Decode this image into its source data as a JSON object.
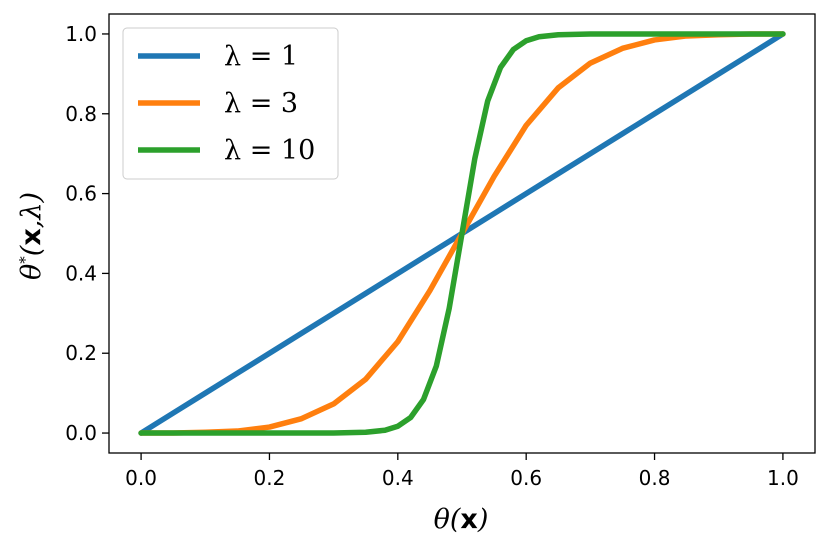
{
  "chart_data": {
    "type": "line",
    "title": "",
    "xlabel": "θ(x)",
    "ylabel": "θ*(x,λ)",
    "xlim": [
      -0.05,
      1.05
    ],
    "ylim": [
      -0.05,
      1.05
    ],
    "xticks": [
      "0.0",
      "0.2",
      "0.4",
      "0.6",
      "0.8",
      "1.0"
    ],
    "yticks": [
      "0.0",
      "0.2",
      "0.4",
      "0.6",
      "0.8",
      "1.0"
    ],
    "grid": false,
    "legend_position": "top-left",
    "series": [
      {
        "name": "λ = 1",
        "color": "#1f77b4",
        "x": [
          0,
          0.05,
          0.1,
          0.15,
          0.2,
          0.25,
          0.3,
          0.35,
          0.4,
          0.45,
          0.5,
          0.55,
          0.6,
          0.65,
          0.7,
          0.75,
          0.8,
          0.85,
          0.9,
          0.95,
          1
        ],
        "y": [
          0,
          0.05,
          0.1,
          0.15,
          0.2,
          0.25,
          0.3,
          0.35,
          0.4,
          0.45,
          0.5,
          0.55,
          0.6,
          0.65,
          0.7,
          0.75,
          0.8,
          0.85,
          0.9,
          0.95,
          1
        ]
      },
      {
        "name": "λ = 3",
        "color": "#ff7f0e",
        "x": [
          0,
          0.05,
          0.1,
          0.15,
          0.2,
          0.25,
          0.3,
          0.35,
          0.4,
          0.45,
          0.5,
          0.55,
          0.6,
          0.65,
          0.7,
          0.75,
          0.8,
          0.85,
          0.9,
          0.95,
          1
        ],
        "y": [
          0,
          0.0001,
          0.002,
          0.005,
          0.015,
          0.036,
          0.073,
          0.135,
          0.229,
          0.357,
          0.5,
          0.643,
          0.771,
          0.865,
          0.927,
          0.964,
          0.985,
          0.995,
          0.998,
          0.9999,
          1
        ]
      },
      {
        "name": "λ = 10",
        "color": "#2ca02c",
        "x": [
          0,
          0.1,
          0.2,
          0.3,
          0.35,
          0.38,
          0.4,
          0.42,
          0.44,
          0.46,
          0.48,
          0.5,
          0.52,
          0.54,
          0.56,
          0.58,
          0.6,
          0.62,
          0.65,
          0.7,
          0.8,
          0.9,
          1
        ],
        "y": [
          0,
          0,
          0,
          0.0002,
          0.002,
          0.007,
          0.017,
          0.039,
          0.084,
          0.168,
          0.312,
          0.5,
          0.688,
          0.832,
          0.916,
          0.961,
          0.983,
          0.993,
          0.998,
          0.9998,
          1,
          1,
          1
        ]
      }
    ]
  }
}
